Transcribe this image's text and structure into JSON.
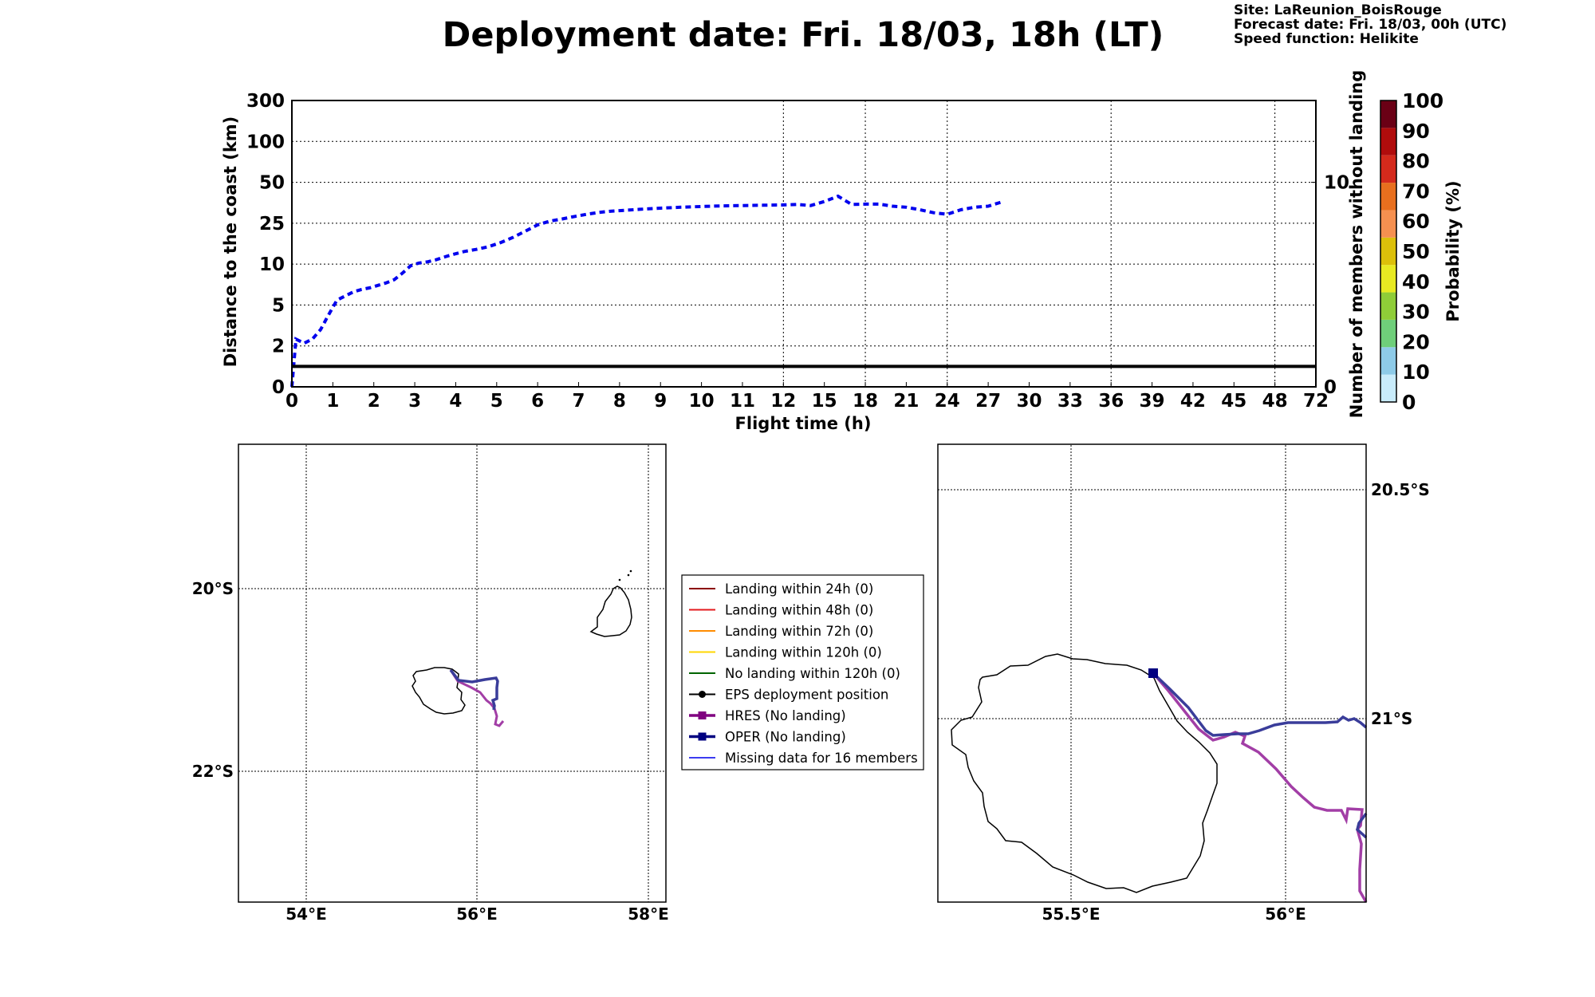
{
  "title": "Deployment date: Fri. 18/03, 18h (LT)",
  "info": {
    "site": "Site: LaReunion_BoisRouge",
    "forecast": "Forecast date: Fri. 18/03, 00h (UTC)",
    "speed": "Speed function: Helikite"
  },
  "colors": {
    "distance_line": "#0000ee",
    "no_landing_members": "#000000",
    "hres": "#a23ea6",
    "oper": "#3a3d9a"
  },
  "chart_data": [
    {
      "type": "line",
      "xlabel": "Flight time (h)",
      "ylabel": "Distance to the coast (km)",
      "ylabel_right": "Number of members without landing",
      "x_ticks": [
        "0",
        "1",
        "2",
        "3",
        "4",
        "5",
        "6",
        "7",
        "8",
        "9",
        "10",
        "11",
        "12",
        "15",
        "18",
        "21",
        "24",
        "27",
        "30",
        "33",
        "36",
        "39",
        "42",
        "45",
        "48",
        "72"
      ],
      "y_ticks": [
        "0",
        "2",
        "5",
        "10",
        "25",
        "50",
        "100",
        "300"
      ],
      "y_ticks_right": [
        "0",
        "10"
      ],
      "grid": true,
      "series": [
        {
          "style": "dashed",
          "x": [
            0,
            0.1,
            0.3,
            0.5,
            0.7,
            0.9,
            1.1,
            1.3,
            1.5,
            1.7,
            1.9,
            2.1,
            2.3,
            2.5,
            2.7,
            2.9,
            3.1,
            3.3,
            3.5,
            3.7,
            3.9,
            4.2,
            4.5,
            4.8,
            5.1,
            5.4,
            5.7,
            6,
            6.3,
            6.6,
            6.9,
            7.2,
            7.5,
            7.8,
            8,
            8.5,
            9,
            9.5,
            10,
            10.5,
            11,
            11.5,
            12,
            13,
            14,
            15,
            16,
            17,
            18,
            19,
            20,
            21,
            22,
            23,
            24,
            25,
            26,
            27,
            28
          ],
          "y": [
            0,
            2.5,
            2.2,
            2.5,
            3.2,
            4.3,
            5.6,
            6.1,
            6.6,
            6.9,
            7.1,
            7.4,
            7.7,
            8.1,
            8.9,
            9.8,
            10.4,
            10.8,
            11.5,
            12.5,
            13.4,
            14.6,
            15.4,
            16.4,
            17.9,
            19.8,
            22.1,
            24.4,
            26.3,
            27.6,
            29.1,
            30.5,
            31.6,
            32.4,
            32.7,
            33.5,
            34.2,
            34.8,
            35.2,
            35.6,
            35.8,
            36,
            36.2,
            36.5,
            35.8,
            38.3,
            41.5,
            36.5,
            36.7,
            36.7,
            35.4,
            34.8,
            33.2,
            31.4,
            30.5,
            33.2,
            34.8,
            35.4,
            38
          ]
        },
        {
          "name": "Number of members without landing",
          "axis": "right",
          "x": [
            0,
            72
          ],
          "y": [
            1,
            1
          ]
        }
      ]
    },
    {
      "type": "heatmap",
      "colorbar_label": "Probability (%)",
      "ticks": [
        "0",
        "10",
        "20",
        "30",
        "40",
        "50",
        "60",
        "70",
        "80",
        "90",
        "100"
      ],
      "colors": [
        "#c9ecfb",
        "#8ecbe8",
        "#6fcf7a",
        "#8fcd38",
        "#e8ea22",
        "#dcc00a",
        "#f59050",
        "#e86f1e",
        "#d42a1c",
        "#b00c0c",
        "#6a0015"
      ]
    }
  ],
  "map_left": {
    "lon_ticks": [
      "54°E",
      "56°E",
      "58°E"
    ],
    "lat_ticks": [
      "20°S",
      "22°S"
    ]
  },
  "map_right": {
    "lon_ticks": [
      "55.5°E",
      "56°E"
    ],
    "lat_ticks": [
      "20.5°S",
      "21°S"
    ]
  },
  "legend": {
    "items": [
      {
        "label": "Landing within 24h (0)",
        "color": "#8b0000"
      },
      {
        "label": "Landing within 48h (0)",
        "color": "#e31a1c"
      },
      {
        "label": "Landing within 72h (0)",
        "color": "#ff8c00"
      },
      {
        "label": "Landing within 120h (0)",
        "color": "#ffd700"
      },
      {
        "label": "No landing within 120h (0)",
        "color": "#006400"
      },
      {
        "label": "EPS deployment position",
        "color": "#000000"
      },
      {
        "label": "HRES (No landing)",
        "color": "#800080"
      },
      {
        "label": "OPER (No landing)",
        "color": "#000080"
      },
      {
        "label": "Missing data for 16 members",
        "color": "#3b3bf0"
      }
    ]
  }
}
